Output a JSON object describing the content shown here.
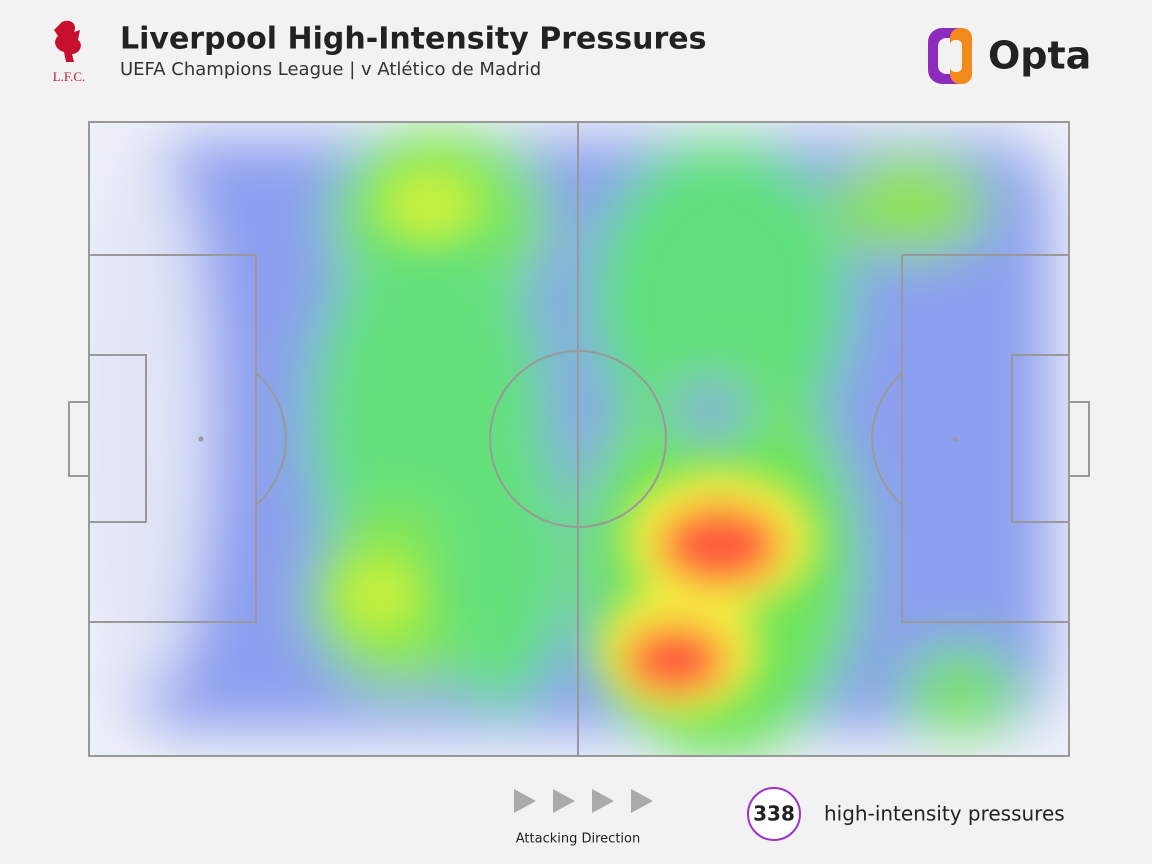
{
  "header": {
    "title": "Liverpool High-Intensity Pressures",
    "subtitle": "UEFA Champions League | v Atlético de Madrid",
    "club": "L.F.C.",
    "brand": "Opta"
  },
  "footer": {
    "direction": "Attacking Direction",
    "count": 338,
    "count_label": "high-intensity pressures"
  }
}
